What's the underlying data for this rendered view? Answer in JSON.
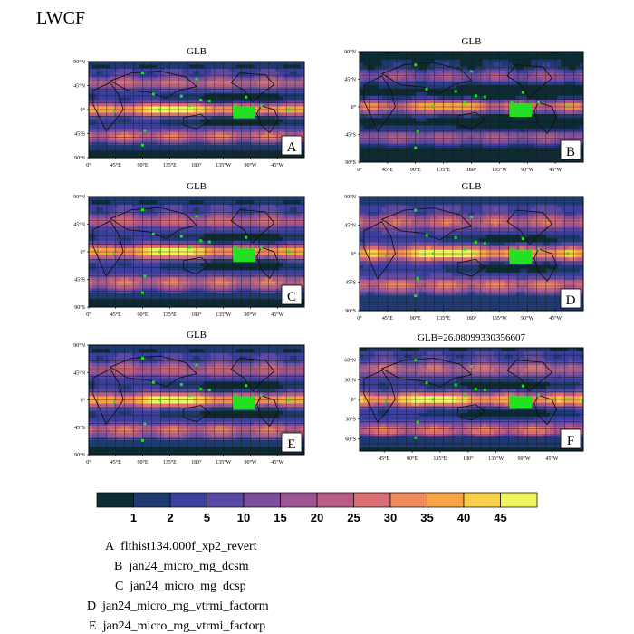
{
  "page": {
    "title": "LWCF"
  },
  "panels": [
    {
      "title": "GLB",
      "tag": "A",
      "yticks": [
        "90°N",
        "45°N",
        "0°",
        "45°S",
        "90°S"
      ],
      "xticks": [
        "0°",
        "45°E",
        "90°E",
        "135°E",
        "180°",
        "135°W",
        "90°W",
        "45°W"
      ]
    },
    {
      "title": "GLB",
      "tag": "B",
      "yticks": [
        "90°N",
        "45°N",
        "0°",
        "45°S",
        "90°S"
      ],
      "xticks": [
        "0°",
        "45°E",
        "90°E",
        "135°E",
        "180°",
        "135°W",
        "90°W",
        "45°W"
      ]
    },
    {
      "title": "GLB",
      "tag": "C",
      "yticks": [
        "90°N",
        "45°N",
        "0°",
        "45°S",
        "90°S"
      ],
      "xticks": [
        "0°",
        "45°E",
        "90°E",
        "135°E",
        "180°",
        "135°W",
        "90°W",
        "45°W"
      ]
    },
    {
      "title": "GLB",
      "tag": "D",
      "yticks": [
        "90°N",
        "45°N",
        "0°",
        "45°S",
        "90°S"
      ],
      "xticks": [
        "0°",
        "45°E",
        "90°E",
        "135°E",
        "180°",
        "135°W",
        "90°W",
        "45°W"
      ]
    },
    {
      "title": "GLB",
      "tag": "E",
      "yticks": [
        "90°N",
        "45°N",
        "0°",
        "45°S",
        "90°S"
      ],
      "xticks": [
        "0°",
        "45°E",
        "90°E",
        "135°E",
        "180°",
        "135°W",
        "90°W",
        "45°W"
      ]
    },
    {
      "title": "GLB=26.08099330356607",
      "tag": "F",
      "yticks": [
        "60°N",
        "30°N",
        "0°",
        "30°S",
        "60°S"
      ],
      "xticks": [
        "45°E",
        "90°E",
        "135°E",
        "180°",
        "135°W",
        "90°W",
        "45°W"
      ]
    }
  ],
  "colorbar": {
    "labels": [
      "1",
      "2",
      "5",
      "10",
      "15",
      "20",
      "25",
      "30",
      "35",
      "40",
      "45"
    ],
    "colors": [
      "#0d2b33",
      "#1f3a6e",
      "#3b3f9e",
      "#5b4aa3",
      "#7b4f9c",
      "#9b5591",
      "#b85e84",
      "#d96f72",
      "#f08a5a",
      "#f7a544",
      "#f7cf4a",
      "#eef55e"
    ]
  },
  "legend": [
    {
      "tag": "A",
      "case": "flthist134.000f_xp2_revert"
    },
    {
      "tag": "B",
      "case": "jan24_micro_mg_dcsm"
    },
    {
      "tag": "C",
      "case": "jan24_micro_mg_dcsp"
    },
    {
      "tag": "D",
      "case": "jan24_micro_mg_vtrmi_factorm"
    },
    {
      "tag": "E",
      "case": "jan24_micro_mg_vtrmi_factorp"
    }
  ],
  "chart_data": {
    "type": "heatmap",
    "title": "LWCF",
    "colorbar_levels": [
      1,
      2,
      5,
      10,
      15,
      20,
      25,
      30,
      35,
      40,
      45
    ],
    "panels": [
      "A",
      "B",
      "C",
      "D",
      "E",
      "F"
    ],
    "global_mean_F": 26.08099330356607
  }
}
